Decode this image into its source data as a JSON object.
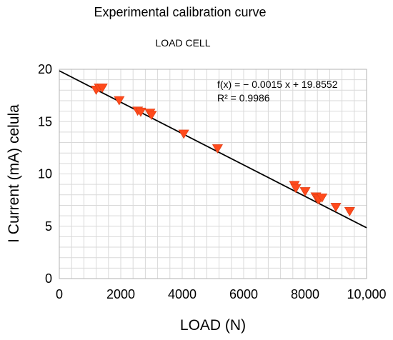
{
  "chart_data": {
    "type": "scatter",
    "title": "Experimental calibration curve",
    "subtitle": "LOAD CELL",
    "xlabel": "LOAD (N)",
    "ylabel": "I Current (mA) celula",
    "xlim": [
      0,
      10000
    ],
    "ylim": [
      0,
      20
    ],
    "x_ticks": [
      0,
      2000,
      4000,
      6000,
      8000,
      10000
    ],
    "x_tick_labels": [
      "0",
      "2000",
      "4000",
      "6000",
      "8000",
      "10,000"
    ],
    "y_ticks": [
      0,
      5,
      10,
      15,
      20
    ],
    "y_tick_labels": [
      "0",
      "5",
      "10",
      "15",
      "20"
    ],
    "grid": true,
    "marker": "triangle-down",
    "marker_color": "#ff4a1c",
    "points": [
      {
        "x": 1200,
        "y": 18.0
      },
      {
        "x": 1300,
        "y": 18.2
      },
      {
        "x": 1400,
        "y": 18.2
      },
      {
        "x": 1950,
        "y": 17.0
      },
      {
        "x": 2550,
        "y": 16.0
      },
      {
        "x": 2650,
        "y": 15.9
      },
      {
        "x": 2950,
        "y": 15.8
      },
      {
        "x": 3000,
        "y": 15.6
      },
      {
        "x": 4050,
        "y": 13.8
      },
      {
        "x": 5150,
        "y": 12.4
      },
      {
        "x": 7650,
        "y": 8.9
      },
      {
        "x": 7700,
        "y": 8.6
      },
      {
        "x": 8000,
        "y": 8.3
      },
      {
        "x": 8350,
        "y": 7.8
      },
      {
        "x": 8400,
        "y": 7.6
      },
      {
        "x": 8450,
        "y": 7.5
      },
      {
        "x": 8550,
        "y": 7.7
      },
      {
        "x": 9000,
        "y": 6.8
      },
      {
        "x": 9450,
        "y": 6.4
      }
    ],
    "trendline": {
      "slope": -0.0015,
      "intercept": 19.8552,
      "color": "#000000",
      "equation": "f(x) = − 0.0015 x + 19.8552",
      "r_squared": "R² = 0.9986"
    }
  }
}
